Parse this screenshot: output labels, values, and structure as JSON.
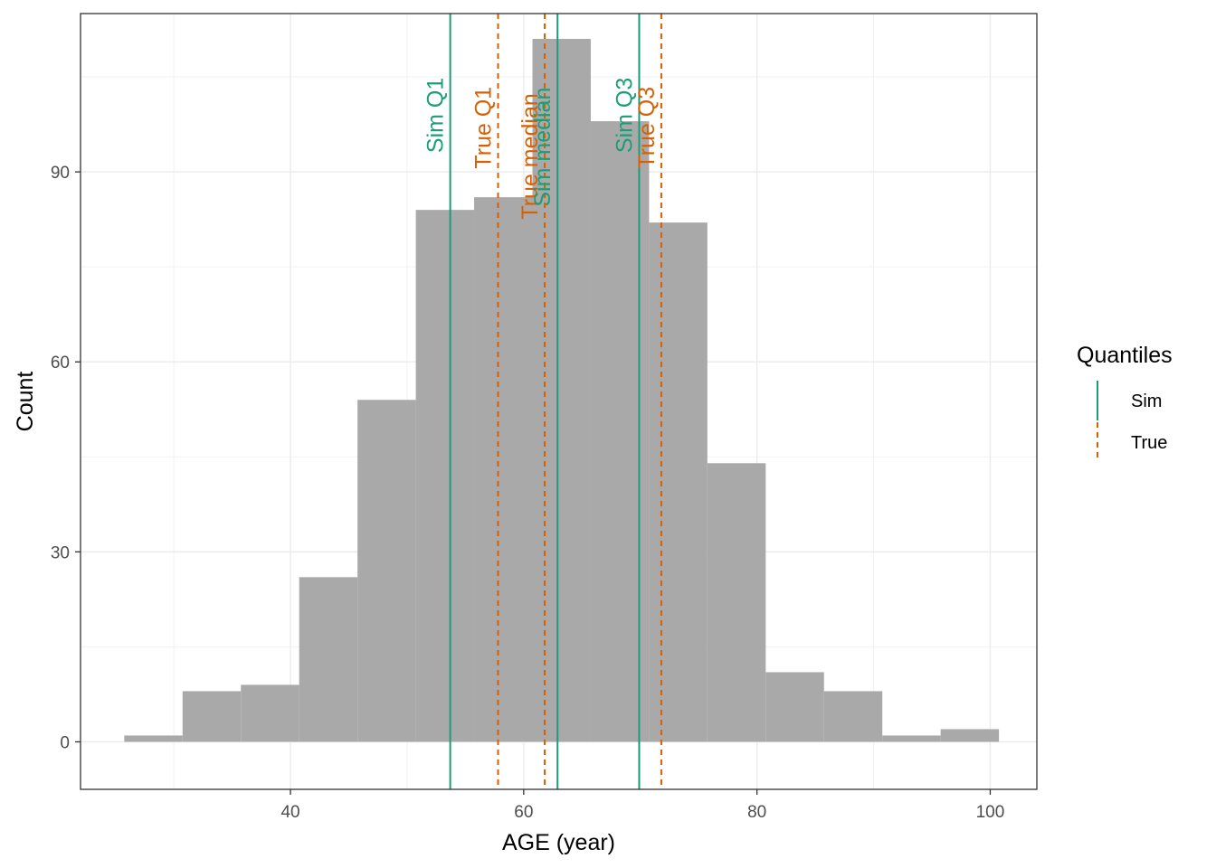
{
  "chart_data": {
    "type": "histogram",
    "xlabel": "AGE (year)",
    "ylabel": "Count",
    "xlim": [
      22,
      104
    ],
    "ylim": [
      -7.5,
      115
    ],
    "x_ticks": [
      40,
      60,
      80,
      100
    ],
    "y_ticks": [
      0,
      30,
      60,
      90
    ],
    "grid": true,
    "bar_color": "#a9a9a9",
    "bins": [
      {
        "x0": 25.75,
        "x1": 30.75,
        "count": 1
      },
      {
        "x0": 30.75,
        "x1": 35.75,
        "count": 8
      },
      {
        "x0": 35.75,
        "x1": 40.75,
        "count": 9
      },
      {
        "x0": 40.75,
        "x1": 45.75,
        "count": 26
      },
      {
        "x0": 45.75,
        "x1": 50.75,
        "count": 54
      },
      {
        "x0": 50.75,
        "x1": 55.75,
        "count": 84
      },
      {
        "x0": 55.75,
        "x1": 60.75,
        "count": 86
      },
      {
        "x0": 60.75,
        "x1": 65.75,
        "count": 111
      },
      {
        "x0": 65.75,
        "x1": 70.75,
        "count": 98
      },
      {
        "x0": 70.75,
        "x1": 75.75,
        "count": 82
      },
      {
        "x0": 75.75,
        "x1": 80.75,
        "count": 44
      },
      {
        "x0": 80.75,
        "x1": 85.75,
        "count": 11
      },
      {
        "x0": 85.75,
        "x1": 90.75,
        "count": 8
      },
      {
        "x0": 90.75,
        "x1": 95.75,
        "count": 1
      },
      {
        "x0": 95.75,
        "x1": 100.75,
        "count": 2
      }
    ],
    "quantile_lines": [
      {
        "label": "Sim Q1",
        "group": "Sim",
        "x": 53.7,
        "label_y": 93
      },
      {
        "label": "True Q1",
        "group": "True",
        "x": 57.8,
        "label_y": 90.5
      },
      {
        "label": "True median",
        "group": "True",
        "x": 61.8,
        "label_y": 82.5
      },
      {
        "label": "Sim median",
        "group": "Sim",
        "x": 62.9,
        "label_y": 84.5
      },
      {
        "label": "Sim Q3",
        "group": "Sim",
        "x": 69.9,
        "label_y": 93
      },
      {
        "label": "True Q3",
        "group": "True",
        "x": 71.8,
        "label_y": 90.5
      }
    ],
    "legend": {
      "title": "Quantiles",
      "position": "right",
      "entries": [
        {
          "name": "Sim",
          "color": "#1b9e77",
          "dash": "solid"
        },
        {
          "name": "True",
          "color": "#d95f02",
          "dash": "dashed"
        }
      ]
    }
  }
}
